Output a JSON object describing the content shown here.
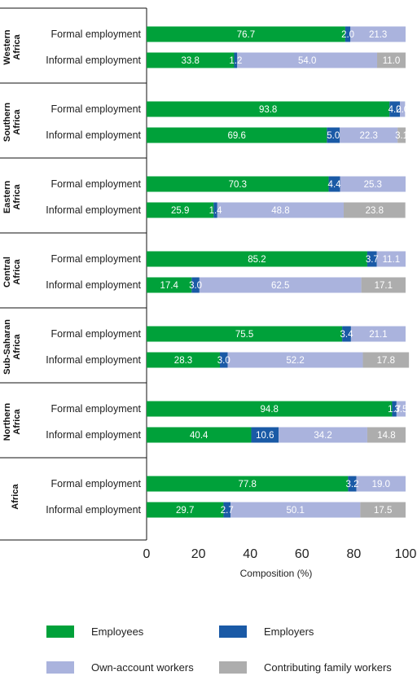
{
  "chart_data": {
    "type": "bar",
    "orientation": "horizontal",
    "stacked": true,
    "xlabel": "Composition (%)",
    "xlim": [
      0,
      100
    ],
    "xticks": [
      0,
      20,
      40,
      60,
      80,
      100
    ],
    "legend_position": "bottom",
    "series": [
      {
        "name": "Employees",
        "color": "#00a13a"
      },
      {
        "name": "Employers",
        "color": "#1a5aa6"
      },
      {
        "name": "Own-account workers",
        "color": "#aab3dd"
      },
      {
        "name": "Contributing family workers",
        "color": "#adadad"
      }
    ],
    "groups": [
      {
        "label": "Western Africa",
        "rows": [
          {
            "label": "Formal employment",
            "values": [
              76.7,
              2.0,
              21.3,
              0
            ],
            "labels": [
              "76.7",
              "2.0",
              "21.3",
              ""
            ]
          },
          {
            "label": "Informal employment",
            "values": [
              33.8,
              1.2,
              54.0,
              11.0
            ],
            "labels": [
              "33.8",
              "1.2",
              "54.0",
              "11.0"
            ]
          }
        ]
      },
      {
        "label": "Southern Africa",
        "rows": [
          {
            "label": "Formal employment",
            "values": [
              93.8,
              4.0,
              2.0,
              0
            ],
            "labels": [
              "93.8",
              "4.0",
              "2.0",
              ""
            ]
          },
          {
            "label": "Informal employment",
            "values": [
              69.6,
              5.0,
              22.3,
              3.1
            ],
            "labels": [
              "69.6",
              "5.0",
              "22.3",
              "3.1"
            ]
          }
        ]
      },
      {
        "label": "Eastern Africa",
        "rows": [
          {
            "label": "Formal employment",
            "values": [
              70.3,
              4.4,
              25.3,
              0
            ],
            "labels": [
              "70.3",
              "4.4",
              "25.3",
              ""
            ]
          },
          {
            "label": "Informal employment",
            "values": [
              25.9,
              1.4,
              48.8,
              23.8
            ],
            "labels": [
              "25.9",
              "1.4",
              "48.8",
              "23.8"
            ]
          }
        ]
      },
      {
        "label": "Central Africa",
        "rows": [
          {
            "label": "Formal employment",
            "values": [
              85.2,
              3.7,
              11.1,
              0
            ],
            "labels": [
              "85.2",
              "3.7",
              "11.1",
              ""
            ]
          },
          {
            "label": "Informal employment",
            "values": [
              17.4,
              3.0,
              62.5,
              17.1
            ],
            "labels": [
              "17.4",
              "3.0",
              "62.5",
              "17.1"
            ]
          }
        ]
      },
      {
        "label": "Sub-Saharan Africa",
        "rows": [
          {
            "label": "Formal employment",
            "values": [
              75.5,
              3.4,
              21.1,
              0
            ],
            "labels": [
              "75.5",
              "3.4",
              "21.1",
              ""
            ]
          },
          {
            "label": "Informal employment",
            "values": [
              28.3,
              3.0,
              52.2,
              17.8
            ],
            "labels": [
              "28.3",
              "3.0",
              "52.2",
              "17.8"
            ]
          }
        ]
      },
      {
        "label": "Northern Africa",
        "rows": [
          {
            "label": "Formal employment",
            "values": [
              94.8,
              1.7,
              3.5,
              0
            ],
            "labels": [
              "94.8",
              "1.7",
              "3.5",
              ""
            ]
          },
          {
            "label": "Informal employment",
            "values": [
              40.4,
              10.6,
              34.2,
              14.8
            ],
            "labels": [
              "40.4",
              "10.6",
              "34.2",
              "14.8"
            ]
          }
        ]
      },
      {
        "label": "Africa",
        "rows": [
          {
            "label": "Formal employment",
            "values": [
              77.8,
              3.2,
              19.0,
              0
            ],
            "labels": [
              "77.8",
              "3.2",
              "19.0",
              ""
            ]
          },
          {
            "label": "Informal employment",
            "values": [
              29.7,
              2.7,
              50.1,
              17.5
            ],
            "labels": [
              "29.7",
              "2.7",
              "50.1",
              "17.5"
            ]
          }
        ]
      }
    ]
  }
}
